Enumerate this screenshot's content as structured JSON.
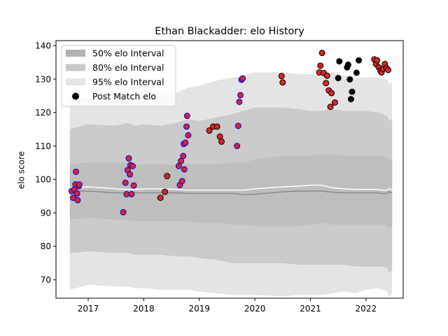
{
  "chart_data": {
    "type": "scatter",
    "title": "Ethan Blackadder: elo History",
    "xlabel": "",
    "ylabel": "elo score",
    "xlim": [
      2016.42,
      2022.67
    ],
    "ylim": [
      64.5,
      141.5
    ],
    "xticks": [
      2017,
      2018,
      2019,
      2020,
      2021,
      2022
    ],
    "xtick_labels": [
      "2017",
      "2018",
      "2019",
      "2020",
      "2021",
      "2022"
    ],
    "yticks": [
      70,
      80,
      90,
      100,
      110,
      120,
      130,
      140
    ],
    "ytick_labels": [
      "70",
      "80",
      "90",
      "100",
      "110",
      "120",
      "130",
      "140"
    ],
    "legend_position": "top-left",
    "legend": [
      {
        "label": "50% elo Interval",
        "kind": "band",
        "color": "#b2b2b2"
      },
      {
        "label": "80% elo Interval",
        "kind": "band",
        "color": "#c8c8c8"
      },
      {
        "label": "95% elo Interval",
        "kind": "band",
        "color": "#e4e4e4"
      },
      {
        "label": "Post Match elo",
        "kind": "marker",
        "color": "#000000"
      }
    ],
    "colors": {
      "band95": "#e4e4e4",
      "band80": "#cbcbcb",
      "band50": "#bebebe",
      "median_line": "#8a8a8a",
      "mean_line": "#ffffff",
      "red_fill": "#d62728",
      "blue_edge": "#0000ee",
      "black": "#000000"
    },
    "bands": {
      "x": [
        2016.67,
        2017.0,
        2017.5,
        2017.7,
        2017.85,
        2018.0,
        2018.3,
        2018.6,
        2018.8,
        2019.0,
        2019.3,
        2019.6,
        2019.8,
        2020.0,
        2020.5,
        2020.8,
        2021.0,
        2021.2,
        2021.4,
        2021.6,
        2021.8,
        2022.0,
        2022.2,
        2022.3,
        2022.38,
        2022.42,
        2022.47
      ],
      "p95_upper": [
        124.0,
        124.5,
        124.5,
        126.0,
        125.5,
        125.0,
        126.0,
        126.0,
        127.5,
        128.0,
        129.5,
        130.5,
        131.0,
        132.0,
        132.0,
        131.5,
        131.5,
        131.0,
        132.0,
        131.0,
        130.5,
        130.5,
        130.5,
        130.0,
        130.0,
        128.5,
        129.0
      ],
      "p80_upper": [
        115.0,
        116.5,
        116.0,
        117.0,
        116.0,
        116.5,
        116.0,
        117.0,
        118.0,
        117.5,
        118.5,
        119.5,
        120.5,
        121.5,
        121.5,
        121.0,
        120.5,
        120.5,
        121.0,
        120.5,
        120.5,
        120.5,
        120.0,
        119.5,
        119.0,
        117.5,
        118.0
      ],
      "p50_upper": [
        104.5,
        105.0,
        105.0,
        105.0,
        104.5,
        104.5,
        104.5,
        104.5,
        104.5,
        104.5,
        104.5,
        105.0,
        105.0,
        106.0,
        107.0,
        107.0,
        107.0,
        107.5,
        107.5,
        107.0,
        107.0,
        107.0,
        107.0,
        107.0,
        106.5,
        106.0,
        106.0
      ],
      "p50_lower": [
        88.0,
        88.5,
        88.0,
        88.0,
        87.5,
        87.5,
        87.5,
        87.5,
        87.5,
        87.0,
        87.0,
        86.5,
        86.5,
        86.0,
        86.0,
        86.0,
        86.5,
        87.0,
        86.5,
        86.5,
        86.5,
        86.5,
        86.5,
        86.5,
        86.0,
        85.5,
        86.0
      ],
      "p80_lower": [
        78.0,
        78.5,
        78.0,
        78.0,
        77.5,
        77.5,
        77.5,
        77.0,
        77.0,
        76.5,
        76.0,
        75.0,
        75.0,
        75.0,
        75.0,
        74.5,
        74.5,
        74.5,
        74.5,
        74.5,
        74.0,
        74.0,
        74.0,
        74.0,
        73.5,
        72.0,
        73.0
      ],
      "p95_lower": [
        67.0,
        68.5,
        68.0,
        68.0,
        67.5,
        67.5,
        67.0,
        67.0,
        67.0,
        66.5,
        66.0,
        65.5,
        65.5,
        65.5,
        65.0,
        65.5,
        65.5,
        65.5,
        66.0,
        66.5,
        66.0,
        67.0,
        67.5,
        67.0,
        66.5,
        64.5,
        66.0
      ],
      "median": [
        96.5,
        96.5,
        96.0,
        96.0,
        96.0,
        96.0,
        96.0,
        96.0,
        95.8,
        95.8,
        95.8,
        95.8,
        95.5,
        95.6,
        96.3,
        96.5,
        96.5,
        96.5,
        96.2,
        96.0,
        96.0,
        96.0,
        96.0,
        95.8,
        95.8,
        96.3,
        96.0
      ],
      "mean": [
        97.5,
        97.8,
        97.2,
        97.0,
        97.0,
        97.2,
        97.2,
        97.0,
        96.8,
        96.8,
        96.8,
        96.8,
        96.8,
        97.2,
        97.8,
        98.0,
        98.3,
        98.3,
        97.5,
        97.2,
        97.0,
        97.0,
        97.0,
        96.8,
        96.8,
        97.3,
        96.8
      ]
    },
    "series": [
      {
        "style": "blue-edged",
        "points": [
          [
            2016.7,
            96.5
          ],
          [
            2016.73,
            94.5
          ],
          [
            2016.75,
            97.0
          ],
          [
            2016.77,
            98.5
          ],
          [
            2016.78,
            102.3
          ],
          [
            2016.8,
            95.8
          ],
          [
            2016.81,
            93.8
          ],
          [
            2016.83,
            98.0
          ],
          [
            2016.84,
            98.5
          ],
          [
            2017.63,
            90.2
          ],
          [
            2017.67,
            99.0
          ],
          [
            2017.69,
            95.6
          ],
          [
            2017.71,
            102.8
          ],
          [
            2017.73,
            106.3
          ],
          [
            2017.75,
            101.5
          ],
          [
            2017.76,
            104.3
          ],
          [
            2017.78,
            95.6
          ],
          [
            2017.8,
            104.0
          ],
          [
            2017.82,
            98.2
          ],
          [
            2018.63,
            104.0
          ],
          [
            2018.65,
            98.3
          ],
          [
            2018.67,
            105.5
          ],
          [
            2018.69,
            99.5
          ],
          [
            2018.71,
            107.0
          ],
          [
            2018.72,
            110.6
          ],
          [
            2018.73,
            103.0
          ],
          [
            2018.75,
            111.0
          ],
          [
            2018.77,
            115.8
          ],
          [
            2018.78,
            119.0
          ],
          [
            2018.8,
            113.2
          ],
          [
            2019.68,
            110.0
          ],
          [
            2019.7,
            116.0
          ],
          [
            2019.72,
            123.2
          ],
          [
            2019.74,
            125.2
          ],
          [
            2019.76,
            129.8
          ],
          [
            2019.78,
            130.2
          ]
        ]
      },
      {
        "style": "red",
        "points": [
          [
            2018.3,
            94.5
          ],
          [
            2018.38,
            96.3
          ],
          [
            2018.42,
            101.0
          ],
          [
            2019.18,
            114.6
          ],
          [
            2019.25,
            115.8
          ],
          [
            2019.32,
            115.8
          ],
          [
            2019.37,
            112.8
          ],
          [
            2019.4,
            111.3
          ],
          [
            2020.48,
            130.9
          ],
          [
            2020.5,
            129.0
          ],
          [
            2021.16,
            132.0
          ],
          [
            2021.18,
            134.0
          ],
          [
            2021.21,
            137.8
          ],
          [
            2021.24,
            131.8
          ],
          [
            2021.28,
            128.8
          ],
          [
            2021.3,
            131.0
          ],
          [
            2021.33,
            126.6
          ],
          [
            2021.36,
            121.7
          ],
          [
            2021.38,
            125.8
          ],
          [
            2021.44,
            123.0
          ],
          [
            2022.15,
            135.9
          ],
          [
            2022.18,
            134.5
          ],
          [
            2022.2,
            135.6
          ],
          [
            2022.23,
            133.5
          ],
          [
            2022.26,
            132.5
          ],
          [
            2022.28,
            132.0
          ],
          [
            2022.31,
            133.0
          ],
          [
            2022.34,
            134.5
          ],
          [
            2022.37,
            133.3
          ],
          [
            2022.4,
            132.7
          ]
        ]
      },
      {
        "style": "black",
        "points": [
          [
            2021.5,
            130.3
          ],
          [
            2021.52,
            135.3
          ],
          [
            2021.66,
            133.5
          ],
          [
            2021.68,
            134.3
          ],
          [
            2021.71,
            129.9
          ],
          [
            2021.73,
            124.0
          ],
          [
            2021.75,
            126.2
          ],
          [
            2021.83,
            131.9
          ],
          [
            2021.87,
            135.6
          ]
        ]
      }
    ]
  }
}
